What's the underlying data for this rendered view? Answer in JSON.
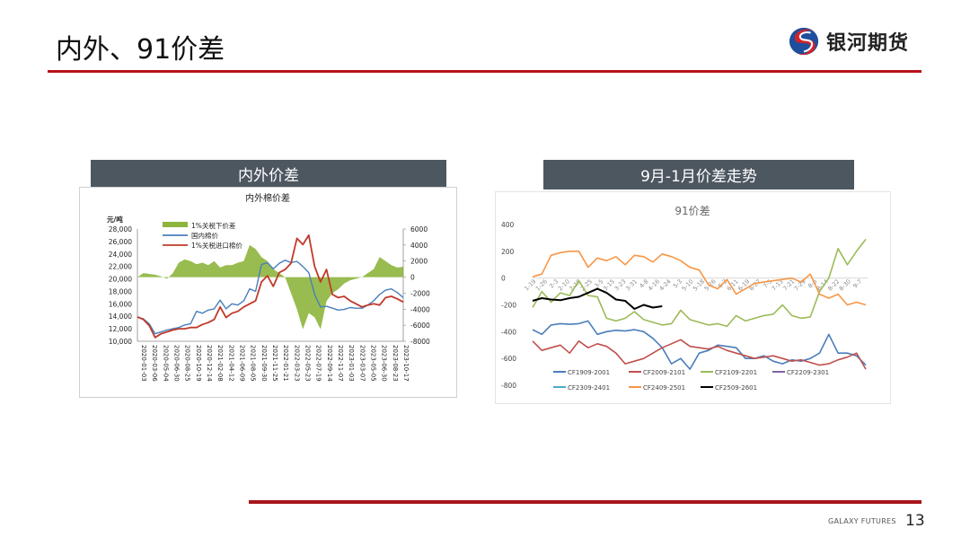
{
  "header": {
    "title": "内外、91价差",
    "logo_text": "银河期货",
    "colors": {
      "rule": "#b5121b",
      "logo_red": "#d2232a",
      "logo_blue": "#1f4e9c"
    }
  },
  "panels": {
    "left": {
      "title": "内外价差"
    },
    "right": {
      "title": "9月-1月价差走势"
    }
  },
  "footer": {
    "brand": "GALAXY FUTURES",
    "page_number": "13"
  },
  "chart_data": [
    {
      "type": "line+area",
      "title": "内外棉价差",
      "ylabel": "元/吨",
      "ylim": [
        10000,
        28000
      ],
      "y_ticks": [
        "28,000",
        "26,000",
        "24,000",
        "22,000",
        "20,000",
        "18,000",
        "16,000",
        "14,000",
        "12,000",
        "10,000"
      ],
      "y2lim": [
        -8000,
        6000
      ],
      "y2_ticks": [
        "6000",
        "4000",
        "2000",
        "0",
        "-2000",
        "-4000",
        "-6000",
        "-8000"
      ],
      "x_ticks": [
        "2020-01-03",
        "2020-03-06",
        "2020-05-04",
        "2020-06-30",
        "2020-08-25",
        "2020-10-19",
        "2020-12-14",
        "2021-02-08",
        "2021-04-12",
        "2021-06-09",
        "2021-08-05",
        "2021-09-30",
        "2021-11-25",
        "2022-01-21",
        "2022-03-23",
        "2022-05-23",
        "2022-07-19",
        "2022-09-14",
        "2022-11-07",
        "2023-01-03",
        "2023-03-07",
        "2023-05-05",
        "2023-06-30",
        "2023-08-23",
        "2023-10-17"
      ],
      "legend": [
        {
          "name": "1%关税下价差",
          "color": "#8db53c",
          "kind": "area",
          "axis": "right"
        },
        {
          "name": "国内棉价",
          "color": "#4a7ebb",
          "kind": "line",
          "axis": "left"
        },
        {
          "name": "1%关税进口棉价",
          "color": "#c0392b",
          "kind": "line",
          "axis": "left"
        }
      ],
      "series": [
        {
          "name": "国内棉价",
          "values": [
            13900,
            13600,
            12800,
            11200,
            11500,
            11800,
            12000,
            12200,
            12600,
            12800,
            14800,
            14500,
            15000,
            15200,
            16600,
            15200,
            16000,
            15800,
            16500,
            18400,
            18000,
            22300,
            22600,
            21600,
            22500,
            23000,
            22600,
            22800,
            22000,
            21000,
            17500,
            15500,
            15600,
            15300,
            15000,
            15100,
            15400,
            15300,
            15300,
            15800,
            16500,
            17500,
            18200,
            18400,
            17800,
            17000
          ]
        },
        {
          "name": "1%关税进口棉价",
          "values": [
            13900,
            13500,
            12500,
            10600,
            11200,
            11500,
            11800,
            12000,
            12000,
            12200,
            12200,
            12700,
            13000,
            13500,
            15500,
            13800,
            14500,
            14800,
            15500,
            16000,
            16500,
            19500,
            20500,
            18800,
            21000,
            21500,
            22500,
            26500,
            25500,
            27000,
            22000,
            19500,
            21500,
            17500,
            17000,
            17200,
            16500,
            16000,
            15500,
            15800,
            16000,
            15800,
            17000,
            17200,
            16800,
            16300
          ]
        },
        {
          "name": "1%关税下价差",
          "values": [
            0,
            500,
            400,
            300,
            100,
            -200,
            500,
            1800,
            2200,
            2000,
            1600,
            1800,
            1500,
            2000,
            1200,
            1500,
            1500,
            1800,
            2000,
            4000,
            3500,
            2500,
            2000,
            1000,
            500,
            0,
            -2000,
            -4000,
            -6500,
            -4500,
            -5000,
            -6500,
            -3000,
            -2000,
            -1500,
            -800,
            -400,
            -200,
            0,
            500,
            1000,
            2500,
            2000,
            1500,
            1200,
            1300
          ]
        }
      ]
    },
    {
      "type": "line",
      "title": "91价差",
      "ylim": [
        -800,
        400
      ],
      "y_ticks": [
        "400",
        "200",
        "0",
        "-200",
        "-400",
        "-600",
        "-800"
      ],
      "x_ticks": [
        "1-19",
        "1-26",
        "2-3",
        "2-10",
        "2-18",
        "2-25",
        "3-5",
        "3-15",
        "3-23",
        "3-31",
        "4-8",
        "4-16",
        "4-24",
        "5-3",
        "5-10",
        "5-18",
        "5-26",
        "6-3",
        "6-11",
        "6-19",
        "6-27",
        "7-5",
        "7-13",
        "7-21",
        "7-29",
        "8-6",
        "8-14",
        "8-22",
        "8-30",
        "9-7"
      ],
      "legend": [
        {
          "name": "CF1909-2001",
          "color": "#4a7ebb"
        },
        {
          "name": "CF2009-2101",
          "color": "#c0504d"
        },
        {
          "name": "CF2109-2201",
          "color": "#9bbb59"
        },
        {
          "name": "CF2209-2301",
          "color": "#8064a2"
        },
        {
          "name": "CF2309-2401",
          "color": "#4bacc6"
        },
        {
          "name": "CF2409-2501",
          "color": "#f79646"
        },
        {
          "name": "CF2509-2601",
          "color": "#000000"
        }
      ],
      "series": [
        {
          "name": "CF1909-2001",
          "values": [
            -385,
            -420,
            -350,
            -340,
            -345,
            -340,
            -320,
            -420,
            -400,
            -390,
            -395,
            -385,
            -400,
            -450,
            -520,
            -640,
            -600,
            -680,
            -560,
            -540,
            -500,
            -510,
            -520,
            -600,
            -600,
            -580,
            -620,
            -640,
            -610,
            -620,
            -600,
            -560,
            -420,
            -560,
            -560,
            -580,
            -650
          ]
        },
        {
          "name": "CF2009-2101",
          "values": [
            -470,
            -540,
            -520,
            -500,
            -560,
            -470,
            -520,
            -490,
            -510,
            -560,
            -640,
            -620,
            -600,
            -560,
            -520,
            -490,
            -460,
            -510,
            -520,
            -530,
            -510,
            -540,
            -560,
            -580,
            -600,
            -590,
            -580,
            -600,
            -620,
            -610,
            -630,
            -650,
            -640,
            -610,
            -590,
            -560,
            -680
          ]
        },
        {
          "name": "CF2109-2201",
          "values": [
            -220,
            -100,
            -180,
            -110,
            -130,
            -20,
            -130,
            -140,
            -300,
            -320,
            -300,
            -250,
            -310,
            -330,
            -350,
            -340,
            -240,
            -310,
            -330,
            -350,
            -340,
            -360,
            -280,
            -320,
            -300,
            -280,
            -270,
            -200,
            -280,
            -300,
            -290,
            -100,
            0,
            220,
            100,
            200,
            290
          ]
        },
        {
          "name": "CF2409-2501",
          "values": [
            10,
            30,
            170,
            190,
            200,
            200,
            80,
            150,
            130,
            160,
            100,
            170,
            160,
            120,
            180,
            160,
            130,
            80,
            60,
            -50,
            -80,
            -10,
            -120,
            -80,
            -40,
            -30,
            -20,
            -10,
            0,
            -30,
            30,
            -120,
            -150,
            -120,
            -200,
            -180,
            -200
          ]
        },
        {
          "name": "CF2509-2601",
          "values": [
            -170,
            -150,
            -160,
            -165,
            -150,
            -140,
            -110,
            -80,
            -110,
            -160,
            -170,
            -230,
            -200,
            -220,
            -210
          ]
        }
      ]
    }
  ]
}
